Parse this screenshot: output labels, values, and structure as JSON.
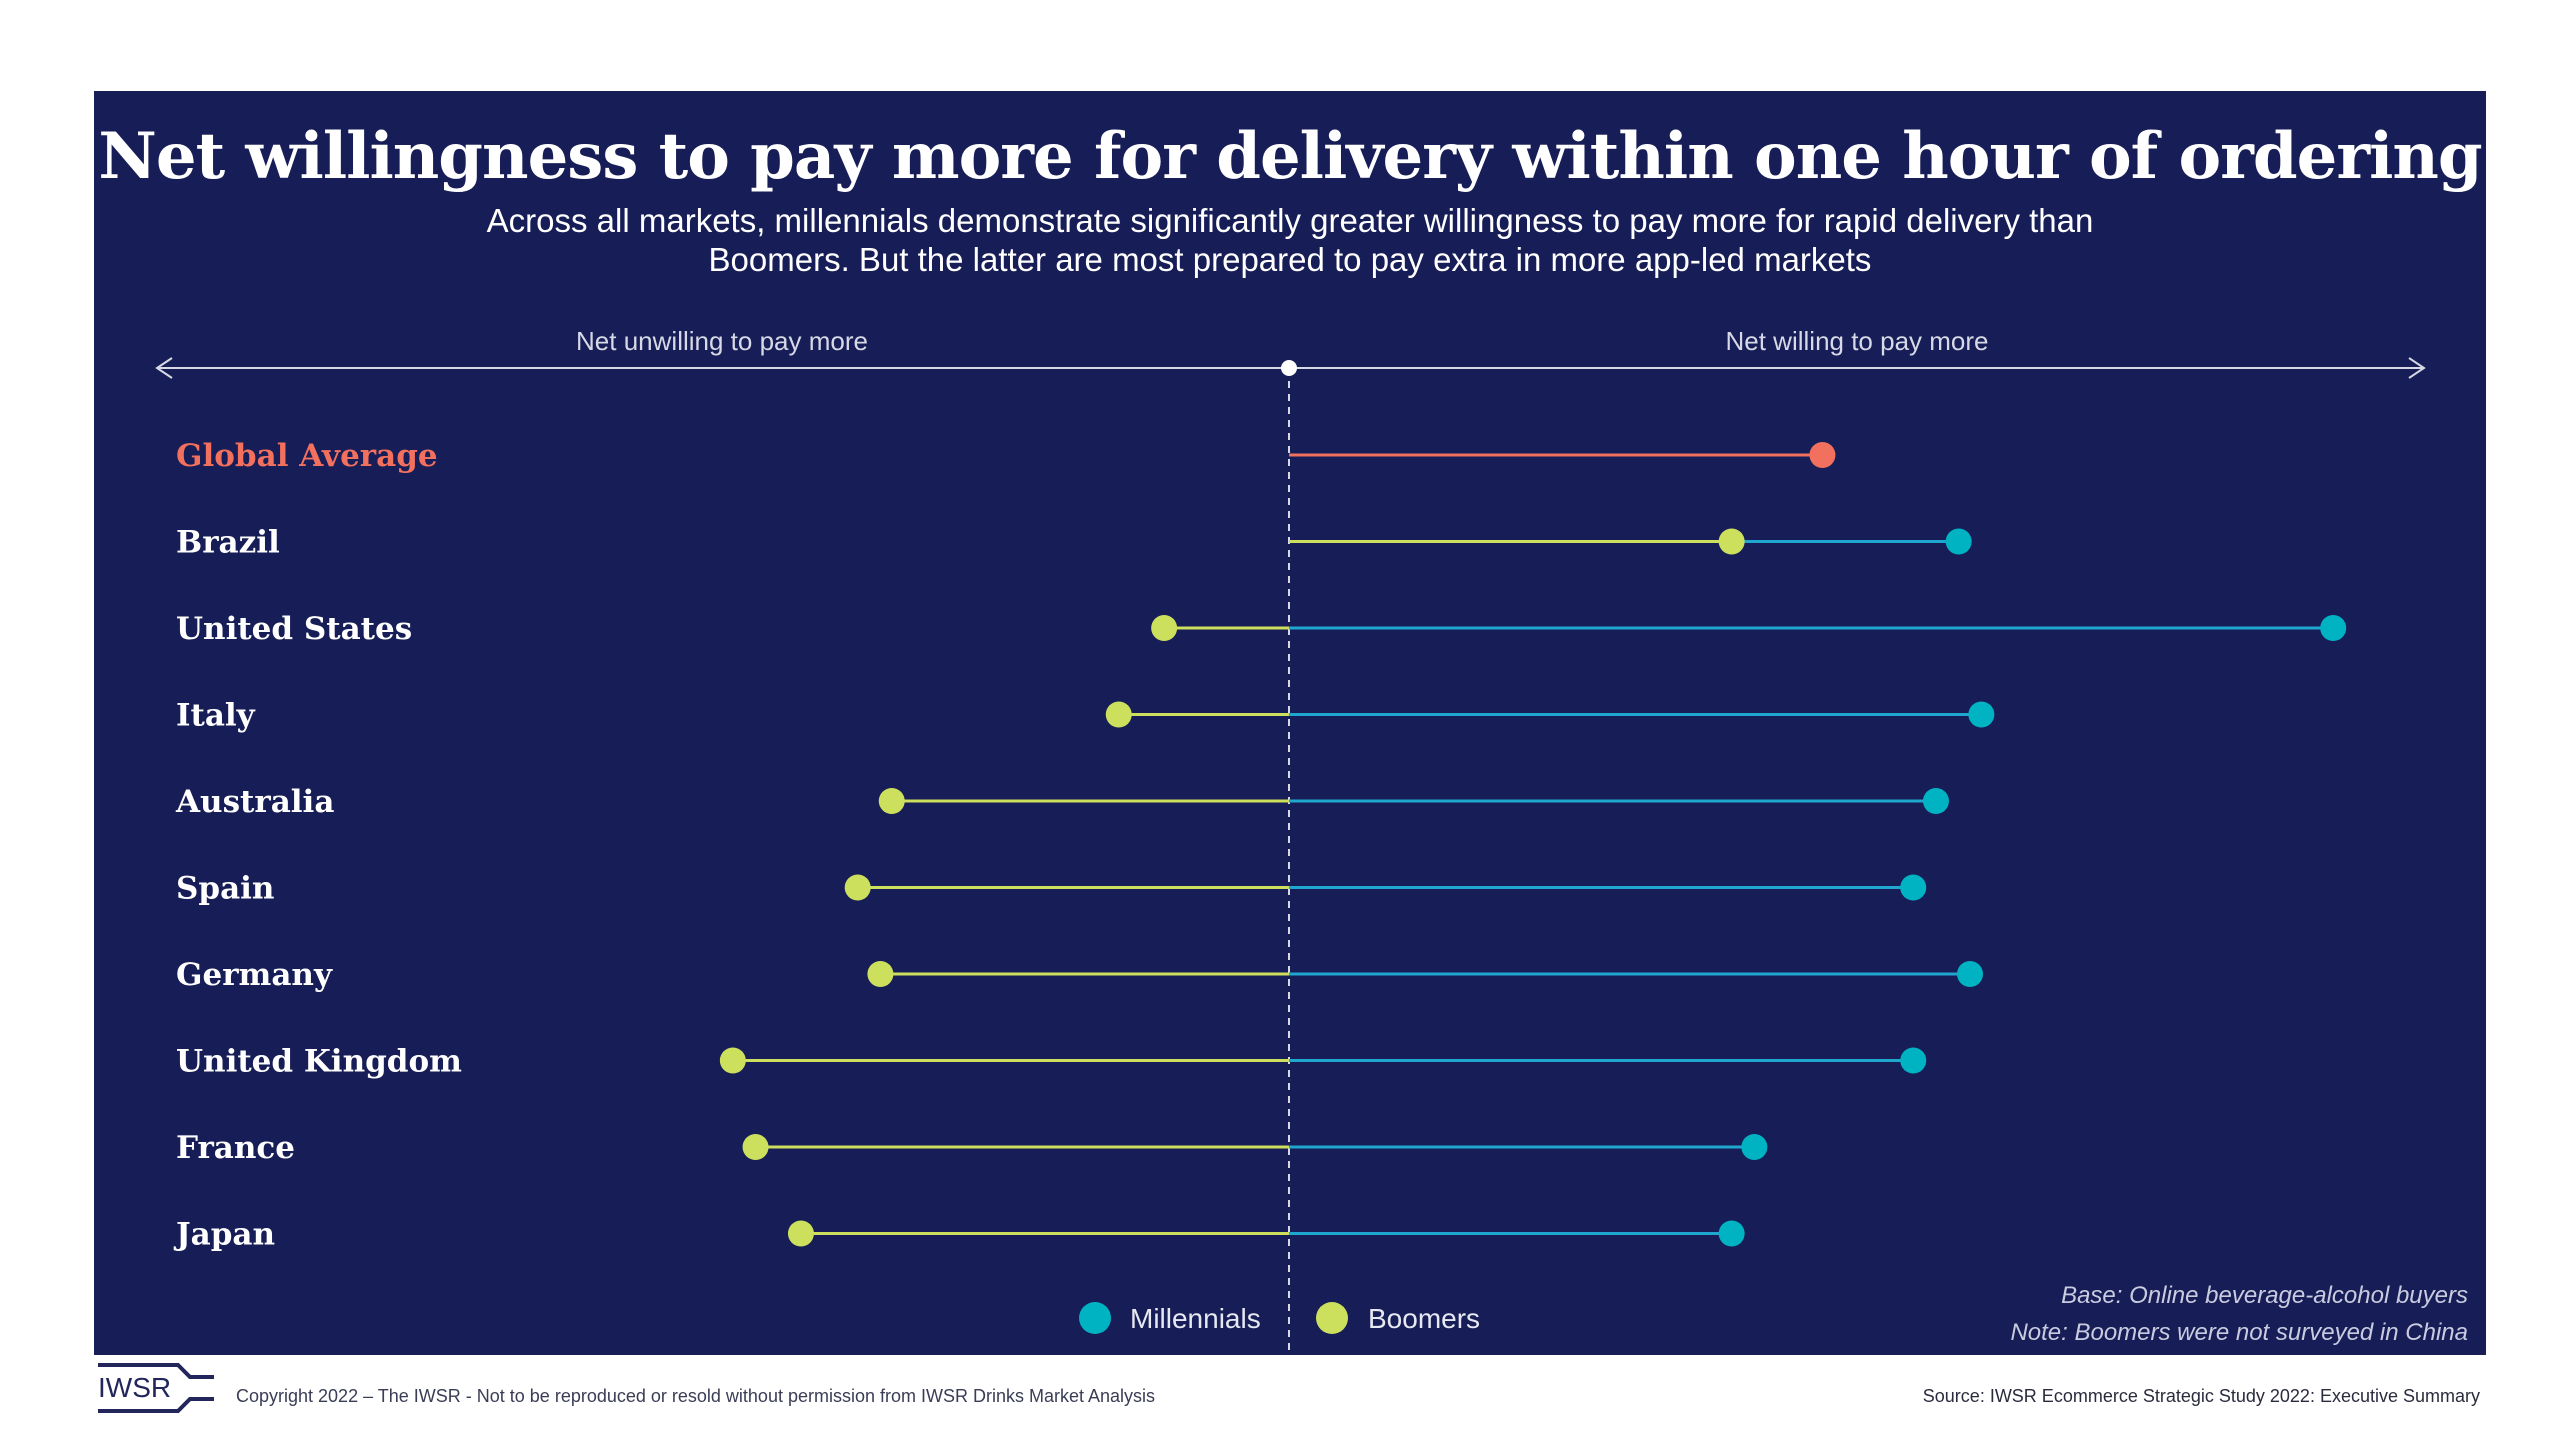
{
  "header": {
    "title": "Net willingness to pay more for delivery within one hour of ordering",
    "subtitle_lines": [
      "Across all markets, millennials demonstrate significantly greater willingness to pay more for rapid delivery than",
      "Boomers. But the latter are most prepared to pay extra in more app-led markets"
    ]
  },
  "colors": {
    "background": "#171d56",
    "millennials": "#00b3c3",
    "millennials_line": "#1fa7cf",
    "boomers": "#cde05e",
    "global": "#f2705e",
    "axis": "#d7d9e6"
  },
  "chart_data": {
    "type": "dumbbell",
    "title": "Net willingness to pay more for delivery within one hour of ordering",
    "axis": {
      "left_label": "Net unwilling to pay more",
      "right_label": "Net willing to pay more",
      "center_value": 0,
      "range": [
        -100,
        100
      ],
      "ticks": "none (relative scale, values estimated from marker positions)"
    },
    "categories": [
      "Global Average",
      "Brazil",
      "United States",
      "Italy",
      "Australia",
      "Spain",
      "Germany",
      "United Kingdom",
      "France",
      "Japan"
    ],
    "highlight_category": "Global Average",
    "series": [
      {
        "name": "Global Average",
        "values": [
          47,
          null,
          null,
          null,
          null,
          null,
          null,
          null,
          null,
          null
        ]
      },
      {
        "name": "Millennials",
        "values": [
          null,
          59,
          92,
          61,
          57,
          55,
          60,
          55,
          41,
          39
        ]
      },
      {
        "name": "Boomers",
        "values": [
          null,
          39,
          -11,
          -15,
          -35,
          -38,
          -36,
          -49,
          -47,
          -43
        ]
      }
    ],
    "legend": {
      "position": "bottom-center",
      "items": [
        {
          "label": "Millennials",
          "color": "#00b3c3"
        },
        {
          "label": "Boomers",
          "color": "#cde05e"
        }
      ]
    },
    "notes": [
      "Base: Online beverage-alcohol buyers",
      "Note: Boomers were not surveyed in China"
    ]
  },
  "footer": {
    "logo_text": "IWSR",
    "copyright": "Copyright 2022 – The IWSR - Not to be reproduced or resold without permission from IWSR Drinks Market Analysis",
    "source": "Source: IWSR Ecommerce Strategic Study 2022: Executive Summary"
  }
}
